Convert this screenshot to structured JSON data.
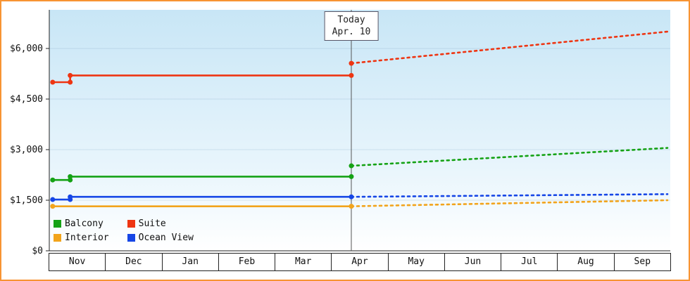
{
  "chart_data": {
    "type": "line",
    "months": [
      "Nov",
      "Dec",
      "Jan",
      "Feb",
      "Mar",
      "Apr",
      "May",
      "Jun",
      "Jul",
      "Aug",
      "Sep"
    ],
    "y_ticks": [
      {
        "label": "$0",
        "value": 0
      },
      {
        "label": "$1,500",
        "value": 1500
      },
      {
        "label": "$3,000",
        "value": 3000
      },
      {
        "label": "$4,500",
        "value": 4500
      },
      {
        "label": "$6,000",
        "value": 6000
      }
    ],
    "ylim": [
      0,
      7146
    ],
    "grid": true,
    "legend_position": "inside-bottom-left",
    "background_gradient": [
      "#c8e6f6",
      "#ffffff"
    ],
    "border_color": "#f79433",
    "today": {
      "line1": "Today",
      "line2": "Apr. 10",
      "x_month": 5.35
    },
    "series": [
      {
        "name": "Balcony",
        "color": "#15a215",
        "history": [
          [
            0.06,
            2100
          ],
          [
            0.37,
            2100
          ],
          [
            0.37,
            2200
          ],
          [
            5.35,
            2200
          ]
        ],
        "forecast": [
          [
            5.35,
            2520
          ],
          [
            10.95,
            3050
          ]
        ],
        "markers": [
          [
            0.06,
            2100
          ],
          [
            0.37,
            2100
          ],
          [
            0.37,
            2200
          ],
          [
            5.35,
            2200
          ],
          [
            5.35,
            2520
          ]
        ]
      },
      {
        "name": "Suite",
        "color": "#ee3512",
        "history": [
          [
            0.06,
            5000
          ],
          [
            0.37,
            5000
          ],
          [
            0.37,
            5200
          ],
          [
            5.35,
            5200
          ]
        ],
        "forecast": [
          [
            5.35,
            5560
          ],
          [
            10.95,
            6500
          ]
        ],
        "markers": [
          [
            0.06,
            5000
          ],
          [
            0.37,
            5000
          ],
          [
            0.37,
            5200
          ],
          [
            5.35,
            5200
          ],
          [
            5.35,
            5560
          ]
        ]
      },
      {
        "name": "Interior",
        "color": "#f2a41c",
        "history": [
          [
            0.06,
            1320
          ],
          [
            5.35,
            1320
          ]
        ],
        "forecast": [
          [
            5.35,
            1320
          ],
          [
            10.95,
            1500
          ]
        ],
        "markers": [
          [
            0.06,
            1320
          ],
          [
            5.35,
            1320
          ]
        ]
      },
      {
        "name": "Ocean View",
        "color": "#1646e6",
        "history": [
          [
            0.06,
            1520
          ],
          [
            0.37,
            1520
          ],
          [
            0.37,
            1600
          ],
          [
            5.35,
            1600
          ]
        ],
        "forecast": [
          [
            5.35,
            1600
          ],
          [
            10.95,
            1680
          ]
        ],
        "markers": [
          [
            0.06,
            1520
          ],
          [
            0.37,
            1520
          ],
          [
            0.37,
            1600
          ],
          [
            5.35,
            1600
          ]
        ]
      }
    ]
  }
}
